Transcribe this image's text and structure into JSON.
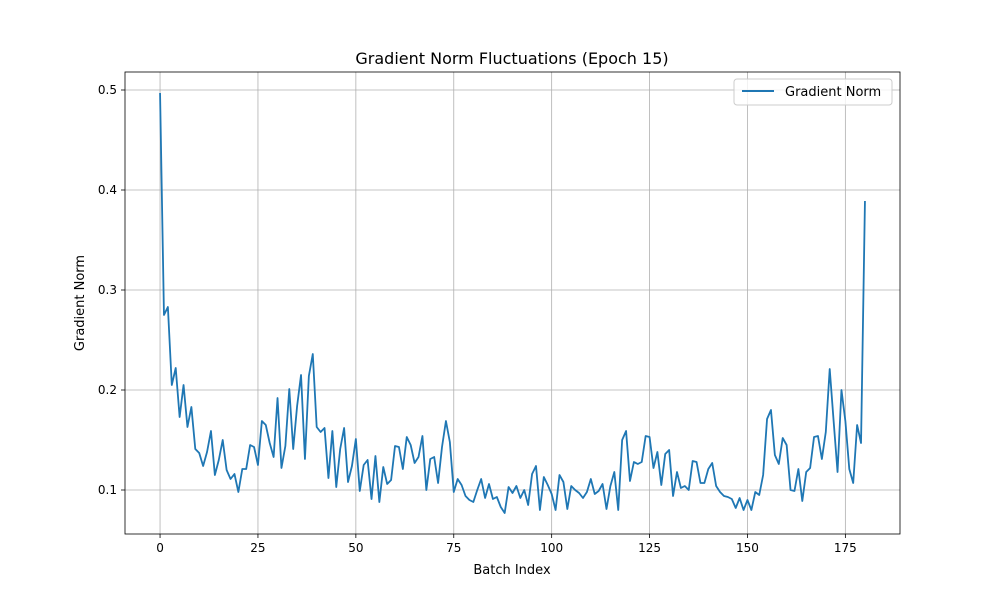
{
  "chart_data": {
    "type": "line",
    "title": "Gradient Norm Fluctuations (Epoch 15)",
    "xlabel": "Batch Index",
    "ylabel": "Gradient Norm",
    "xlim": [
      -8.95,
      188.95
    ],
    "ylim": [
      0.056,
      0.518
    ],
    "xticks": [
      0,
      25,
      50,
      75,
      100,
      125,
      150,
      175
    ],
    "yticks": [
      0.1,
      0.2,
      0.3,
      0.4,
      0.5
    ],
    "xtick_labels": [
      "0",
      "25",
      "50",
      "75",
      "100",
      "125",
      "150",
      "175"
    ],
    "ytick_labels": [
      "0.1",
      "0.2",
      "0.3",
      "0.4",
      "0.5"
    ],
    "grid": true,
    "legend_position": "top-right",
    "series": [
      {
        "name": "Gradient Norm",
        "color": "#1f77b4",
        "x_start": 0,
        "x_step": 1,
        "values": [
          0.497,
          0.275,
          0.283,
          0.205,
          0.222,
          0.173,
          0.205,
          0.163,
          0.183,
          0.141,
          0.137,
          0.124,
          0.138,
          0.159,
          0.115,
          0.13,
          0.15,
          0.12,
          0.111,
          0.116,
          0.098,
          0.121,
          0.121,
          0.145,
          0.143,
          0.125,
          0.169,
          0.165,
          0.147,
          0.133,
          0.192,
          0.122,
          0.144,
          0.201,
          0.141,
          0.184,
          0.215,
          0.131,
          0.214,
          0.236,
          0.163,
          0.158,
          0.162,
          0.112,
          0.159,
          0.103,
          0.141,
          0.162,
          0.108,
          0.124,
          0.151,
          0.099,
          0.125,
          0.13,
          0.091,
          0.134,
          0.088,
          0.123,
          0.106,
          0.11,
          0.144,
          0.143,
          0.121,
          0.153,
          0.145,
          0.127,
          0.133,
          0.154,
          0.1,
          0.131,
          0.133,
          0.107,
          0.143,
          0.169,
          0.148,
          0.098,
          0.111,
          0.105,
          0.094,
          0.09,
          0.088,
          0.1,
          0.111,
          0.092,
          0.106,
          0.091,
          0.093,
          0.083,
          0.077,
          0.103,
          0.097,
          0.104,
          0.092,
          0.1,
          0.085,
          0.116,
          0.124,
          0.08,
          0.113,
          0.105,
          0.096,
          0.08,
          0.115,
          0.108,
          0.081,
          0.104,
          0.1,
          0.097,
          0.092,
          0.098,
          0.111,
          0.096,
          0.099,
          0.106,
          0.081,
          0.104,
          0.118,
          0.08,
          0.15,
          0.159,
          0.109,
          0.128,
          0.126,
          0.128,
          0.154,
          0.153,
          0.122,
          0.138,
          0.105,
          0.136,
          0.14,
          0.094,
          0.118,
          0.102,
          0.104,
          0.1,
          0.129,
          0.128,
          0.107,
          0.107,
          0.121,
          0.127,
          0.104,
          0.098,
          0.094,
          0.093,
          0.091,
          0.082,
          0.092,
          0.08,
          0.09,
          0.08,
          0.098,
          0.095,
          0.115,
          0.171,
          0.18,
          0.135,
          0.126,
          0.152,
          0.145,
          0.1,
          0.099,
          0.121,
          0.089,
          0.118,
          0.122,
          0.153,
          0.154,
          0.131,
          0.158,
          0.221,
          0.169,
          0.118,
          0.2,
          0.169,
          0.121,
          0.107,
          0.165,
          0.147,
          0.389
        ]
      }
    ]
  }
}
